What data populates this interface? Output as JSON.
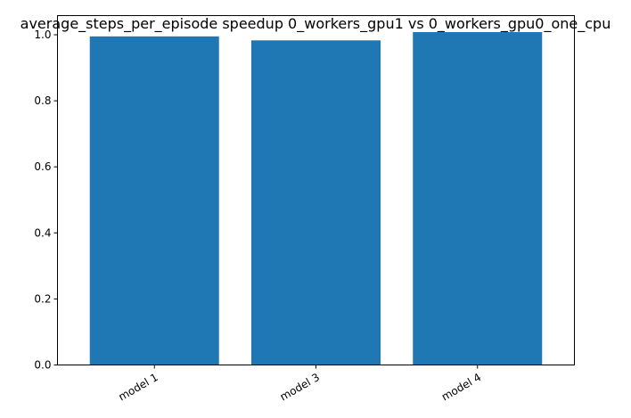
{
  "chart_data": {
    "type": "bar",
    "title": "average_steps_per_episode speedup 0_workers_gpu1 vs 0_workers_gpu0_one_cpu",
    "xlabel": "",
    "ylabel": "",
    "categories": [
      "model 1",
      "model 3",
      "model 4"
    ],
    "values": [
      0.995,
      0.983,
      1.008
    ],
    "ylim": [
      0,
      1.058
    ],
    "yticks": [
      0.0,
      0.2,
      0.4,
      0.6,
      0.8,
      1.0
    ],
    "ytick_labels": [
      "0.0",
      "0.2",
      "0.4",
      "0.6",
      "0.8",
      "1.0"
    ],
    "bar_color": "#1f77b4",
    "grid": false,
    "legend": "none"
  }
}
